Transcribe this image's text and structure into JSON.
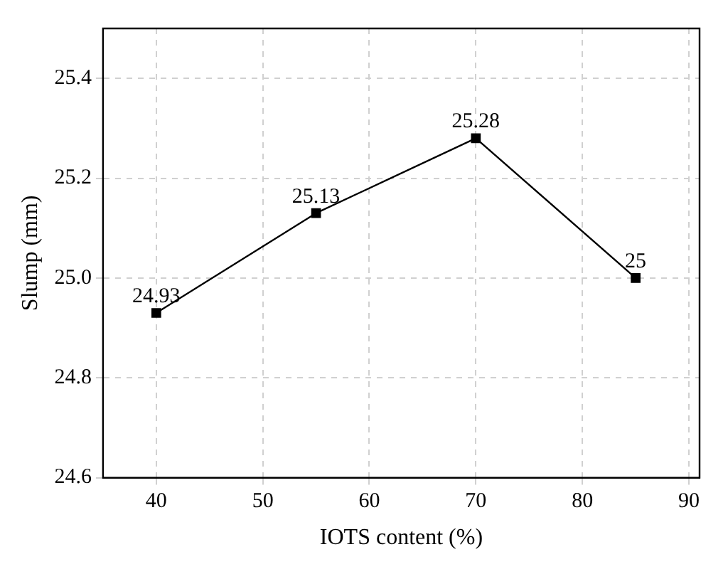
{
  "chart_data": {
    "type": "line",
    "xlabel": "IOTS content (%)",
    "ylabel": "Slump (mm)",
    "x": [
      40,
      55,
      70,
      85
    ],
    "series": [
      {
        "color": "#000000",
        "values": [
          24.93,
          25.13,
          25.28,
          25
        ]
      }
    ],
    "xlim": [
      35,
      91
    ],
    "xticks": [
      40,
      50,
      60,
      70,
      80,
      90
    ],
    "ylim": [
      24.6,
      25.5
    ],
    "yticks": [
      24.6,
      24.8,
      {
        "value": 25,
        "label": "25.0"
      },
      25.2,
      25.4
    ],
    "grid": true,
    "marker": "square",
    "line_style": "solid",
    "data_labels": true,
    "legend": false
  }
}
